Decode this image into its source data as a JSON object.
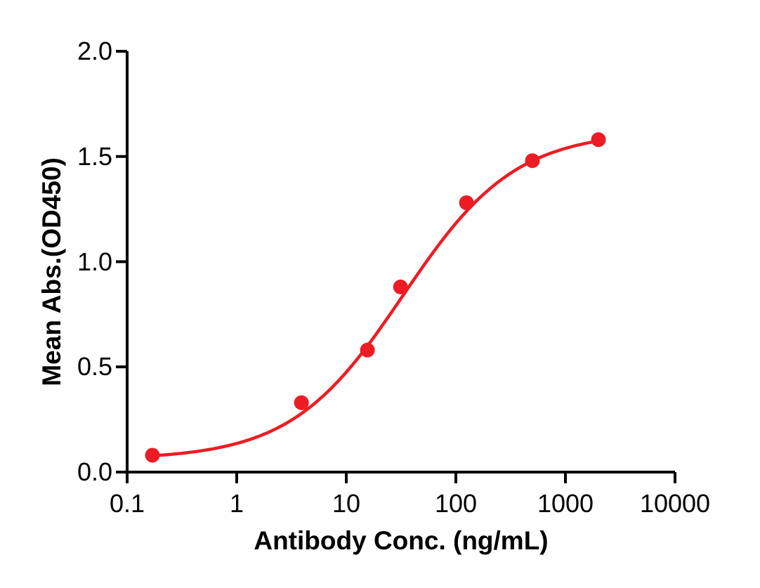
{
  "chart_data": {
    "type": "scatter",
    "title": "",
    "xlabel": "Antibody Conc. (ng/mL)",
    "ylabel": "Mean Abs.(OD450)",
    "x_scale": "log10",
    "xlim": [
      0.1,
      10000
    ],
    "ylim": [
      0.0,
      2.0
    ],
    "xticks": [
      0.1,
      1,
      10,
      100,
      1000,
      10000
    ],
    "xtick_labels": [
      "0.1",
      "1",
      "10",
      "100",
      "1000",
      "10000"
    ],
    "yticks": [
      0.0,
      0.5,
      1.0,
      1.5,
      2.0
    ],
    "ytick_labels": [
      "0.0",
      "0.5",
      "1.0",
      "1.5",
      "2.0"
    ],
    "grid": false,
    "legend": null,
    "colors": {
      "axis": "#000000",
      "series": "#ED1C24",
      "background": "#FFFFFF"
    },
    "series": [
      {
        "points": [
          {
            "x": 0.17,
            "y": 0.08
          },
          {
            "x": 3.9,
            "y": 0.33
          },
          {
            "x": 15.6,
            "y": 0.58
          },
          {
            "x": 31.25,
            "y": 0.88
          },
          {
            "x": 125,
            "y": 1.28
          },
          {
            "x": 500,
            "y": 1.48
          },
          {
            "x": 2000,
            "y": 1.58
          }
        ],
        "marker": "filled-circle",
        "fit_curve": {
          "model": "4PL",
          "bottom": 0.06,
          "top": 1.62,
          "ec50": 33,
          "hill": 0.85,
          "x_range": [
            0.17,
            2000
          ]
        }
      }
    ]
  }
}
